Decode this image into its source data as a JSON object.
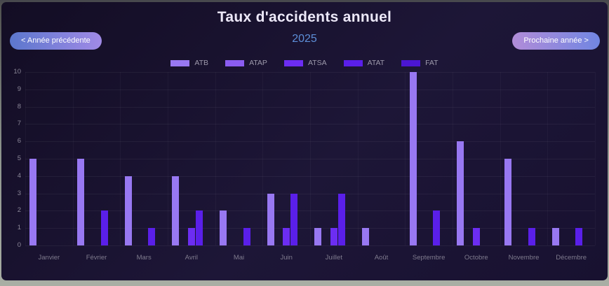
{
  "header": {
    "title": "Taux d'accidents annuel",
    "year": "2025"
  },
  "nav": {
    "prev_label": "< Année précédente",
    "next_label": "Prochaine année >"
  },
  "chart_data": {
    "type": "bar",
    "title": "Taux d'accidents annuel",
    "subtitle": "2025",
    "categories": [
      "Janvier",
      "Février",
      "Mars",
      "Avril",
      "Mai",
      "Juin",
      "Juillet",
      "Août",
      "Septembre",
      "Octobre",
      "Novembre",
      "Décembre"
    ],
    "series": [
      {
        "name": "ATB",
        "color": "#9878f2",
        "values": [
          5,
          5,
          4,
          4,
          2,
          3,
          1,
          1,
          10,
          6,
          5,
          1
        ]
      },
      {
        "name": "ATAP",
        "color": "#8a5cf0",
        "values": [
          0,
          0,
          0,
          0,
          0,
          0,
          0,
          0,
          0,
          0,
          0,
          0
        ]
      },
      {
        "name": "ATSA",
        "color": "#6c2df2",
        "values": [
          0,
          0,
          0,
          1,
          0,
          1,
          1,
          0,
          0,
          1,
          0,
          0
        ]
      },
      {
        "name": "ATAT",
        "color": "#5a1fe9",
        "values": [
          0,
          2,
          1,
          2,
          1,
          3,
          3,
          0,
          2,
          0,
          1,
          1
        ]
      },
      {
        "name": "FAT",
        "color": "#4b16d2",
        "values": [
          0,
          0,
          0,
          0,
          0,
          0,
          0,
          0,
          0,
          0,
          0,
          0
        ]
      }
    ],
    "ylim": [
      0,
      10
    ],
    "yticks": [
      0,
      1,
      2,
      3,
      4,
      5,
      6,
      7,
      8,
      9,
      10
    ],
    "legend_position": "top",
    "grid": true
  }
}
